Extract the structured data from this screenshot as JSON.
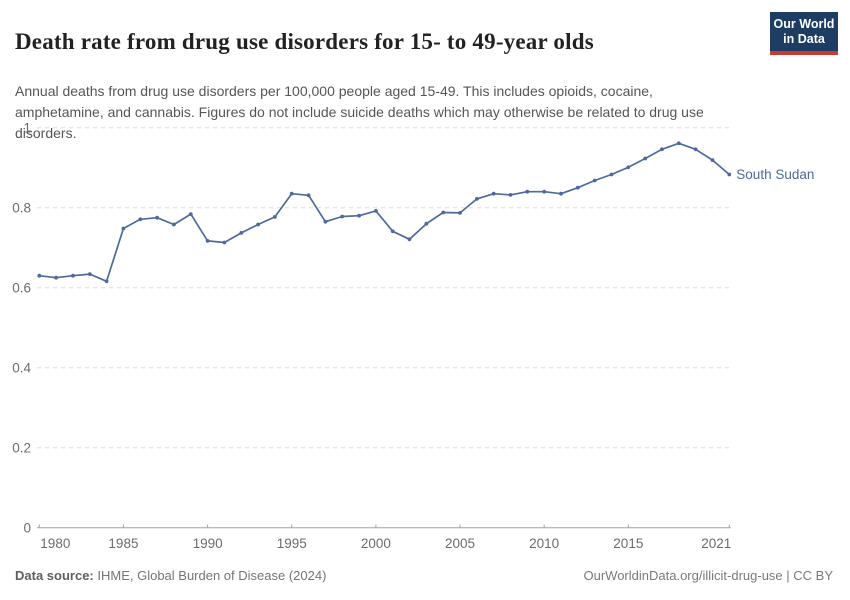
{
  "header": {
    "title": "Death rate from drug use disorders for 15- to 49-year olds",
    "subtitle": "Annual deaths from drug use disorders per 100,000 people aged 15-49. This includes opioids, cocaine, amphetamine, and cannabis. Figures do not include suicide deaths which may otherwise be related to drug use disorders."
  },
  "logo": {
    "line1": "Our World",
    "line2": "in Data",
    "bg_color": "#1d3d63",
    "accent_color": "#cc3b32"
  },
  "chart_data": {
    "type": "line",
    "title": "Death rate from drug use disorders for 15- to 49-year olds",
    "xlabel": "",
    "ylabel": "",
    "xlim": [
      1980,
      2021
    ],
    "ylim": [
      0,
      1
    ],
    "x_ticks": [
      1980,
      1985,
      1990,
      1995,
      2000,
      2005,
      2010,
      2015,
      2021
    ],
    "y_ticks": [
      0,
      0.2,
      0.4,
      0.6,
      0.8,
      1
    ],
    "grid": "horizontal-dashed",
    "legend_position": "end-of-line-label",
    "x": [
      1980,
      1981,
      1982,
      1983,
      1984,
      1985,
      1986,
      1987,
      1988,
      1989,
      1990,
      1991,
      1992,
      1993,
      1994,
      1995,
      1996,
      1997,
      1998,
      1999,
      2000,
      2001,
      2002,
      2003,
      2004,
      2005,
      2006,
      2007,
      2008,
      2009,
      2010,
      2011,
      2012,
      2013,
      2014,
      2015,
      2016,
      2017,
      2018,
      2019,
      2020,
      2021
    ],
    "series": [
      {
        "name": "South Sudan",
        "color": "#4C6A9C",
        "values": [
          0.63,
          0.625,
          0.63,
          0.634,
          0.616,
          0.748,
          0.771,
          0.775,
          0.758,
          0.784,
          0.717,
          0.713,
          0.737,
          0.758,
          0.777,
          0.835,
          0.831,
          0.765,
          0.778,
          0.78,
          0.792,
          0.741,
          0.721,
          0.76,
          0.788,
          0.787,
          0.822,
          0.835,
          0.832,
          0.84,
          0.84,
          0.835,
          0.85,
          0.868,
          0.883,
          0.901,
          0.923,
          0.946,
          0.961,
          0.946,
          0.919,
          0.883
        ]
      }
    ],
    "axis_color": "#a3a3a3",
    "gridline_color": "#dddddd",
    "tick_label_color": "#6c6c6c"
  },
  "footer": {
    "datasource_label": "Data source:",
    "datasource_value": " IHME, Global Burden of Disease (2024)",
    "credit": "OurWorldinData.org/illicit-drug-use | CC BY"
  }
}
